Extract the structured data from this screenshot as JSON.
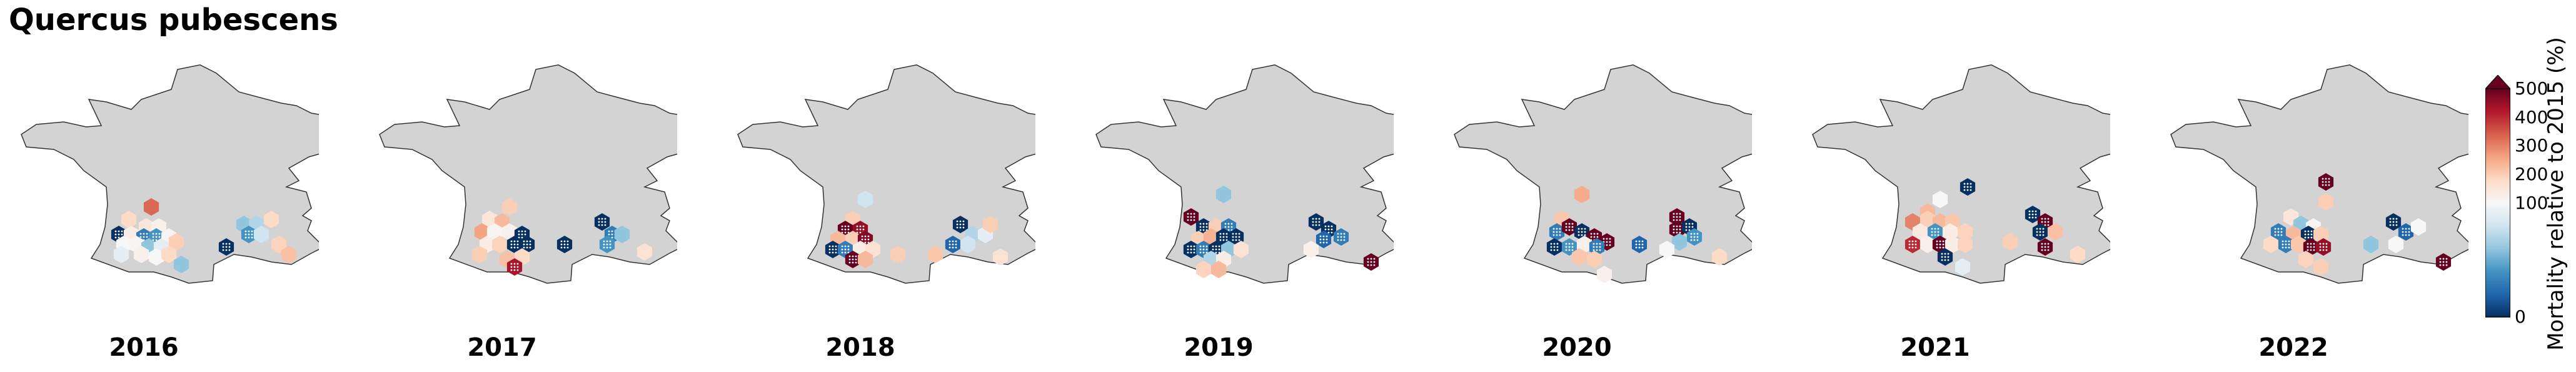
{
  "title": "Quercus pubescens",
  "colorbar": {
    "label": "Mortality relative to 2015 (%)",
    "ticks": [
      "500",
      "400",
      "300",
      "200",
      "100",
      "0"
    ],
    "colors": [
      "#053061",
      "#2166ac",
      "#4393c3",
      "#92c5de",
      "#d1e5f0",
      "#f7f7f7",
      "#fddbc7",
      "#f4a582",
      "#d6604d",
      "#b2182b",
      "#67001f"
    ]
  },
  "colors": {
    "land": "#d3d3d3",
    "border": "#333333"
  },
  "chart_data": {
    "type": "map",
    "region": "France",
    "value_range": [
      0,
      500
    ],
    "panels": [
      {
        "year": "2016",
        "cells": [
          {
            "lon": 0.6,
            "lat": 45.4,
            "value": 330
          },
          {
            "lon": -0.3,
            "lat": 44.9,
            "value": 180
          },
          {
            "lon": 0.4,
            "lat": 44.6,
            "value": 150
          },
          {
            "lon": 0.9,
            "lat": 44.6,
            "value": 120
          },
          {
            "lon": -0.7,
            "lat": 44.3,
            "value": 0
          },
          {
            "lon": -0.2,
            "lat": 44.3,
            "value": 130
          },
          {
            "lon": 0.3,
            "lat": 44.2,
            "value": 30
          },
          {
            "lon": 0.8,
            "lat": 44.2,
            "value": 40
          },
          {
            "lon": 1.3,
            "lat": 44.2,
            "value": 110
          },
          {
            "lon": -0.5,
            "lat": 43.9,
            "value": 100
          },
          {
            "lon": 0.0,
            "lat": 43.9,
            "value": 105
          },
          {
            "lon": 0.5,
            "lat": 43.8,
            "value": 60
          },
          {
            "lon": 1.0,
            "lat": 43.8,
            "value": 90
          },
          {
            "lon": 1.6,
            "lat": 44.0,
            "value": 200
          },
          {
            "lon": -0.6,
            "lat": 43.5,
            "value": 90
          },
          {
            "lon": 0.2,
            "lat": 43.5,
            "value": 120
          },
          {
            "lon": 0.8,
            "lat": 43.4,
            "value": 100
          },
          {
            "lon": 1.3,
            "lat": 43.5,
            "value": 180
          },
          {
            "lon": 1.8,
            "lat": 43.1,
            "value": 60
          },
          {
            "lon": 4.3,
            "lat": 44.7,
            "value": 60
          },
          {
            "lon": 4.8,
            "lat": 44.7,
            "value": 70
          },
          {
            "lon": 4.5,
            "lat": 44.3,
            "value": 40
          },
          {
            "lon": 5.0,
            "lat": 44.3,
            "value": 80
          },
          {
            "lon": 5.4,
            "lat": 44.9,
            "value": 180
          },
          {
            "lon": 3.6,
            "lat": 43.8,
            "value": 0
          },
          {
            "lon": 5.7,
            "lat": 43.9,
            "value": 190
          },
          {
            "lon": 6.1,
            "lat": 43.5,
            "value": 220
          }
        ]
      },
      {
        "year": "2017",
        "cells": [
          {
            "lon": 0.6,
            "lat": 45.4,
            "value": 200
          },
          {
            "lon": -0.2,
            "lat": 44.9,
            "value": 150
          },
          {
            "lon": 0.3,
            "lat": 44.8,
            "value": 230
          },
          {
            "lon": -0.5,
            "lat": 44.4,
            "value": 260
          },
          {
            "lon": 0.0,
            "lat": 44.4,
            "value": 110
          },
          {
            "lon": 0.6,
            "lat": 44.4,
            "value": 120
          },
          {
            "lon": 1.1,
            "lat": 44.3,
            "value": 0
          },
          {
            "lon": -0.3,
            "lat": 43.9,
            "value": 130
          },
          {
            "lon": 0.2,
            "lat": 43.9,
            "value": 190
          },
          {
            "lon": 0.8,
            "lat": 43.9,
            "value": 0
          },
          {
            "lon": 1.3,
            "lat": 43.9,
            "value": 0
          },
          {
            "lon": -0.6,
            "lat": 43.5,
            "value": 200
          },
          {
            "lon": 0.5,
            "lat": 43.3,
            "value": 220
          },
          {
            "lon": 1.1,
            "lat": 43.4,
            "value": 180
          },
          {
            "lon": 0.8,
            "lat": 43.0,
            "value": 430
          },
          {
            "lon": 2.8,
            "lat": 43.9,
            "value": 0
          },
          {
            "lon": 4.3,
            "lat": 44.8,
            "value": 0
          },
          {
            "lon": 4.7,
            "lat": 44.3,
            "value": 30
          },
          {
            "lon": 5.1,
            "lat": 44.3,
            "value": 60
          },
          {
            "lon": 4.5,
            "lat": 43.9,
            "value": 40
          },
          {
            "lon": 6.0,
            "lat": 43.6,
            "value": 160
          }
        ]
      },
      {
        "year": "2018",
        "cells": [
          {
            "lon": 0.5,
            "lat": 45.7,
            "value": 80
          },
          {
            "lon": 0.0,
            "lat": 44.9,
            "value": 200
          },
          {
            "lon": -0.3,
            "lat": 44.5,
            "value": 500
          },
          {
            "lon": 0.3,
            "lat": 44.5,
            "value": 450
          },
          {
            "lon": -0.6,
            "lat": 44.1,
            "value": 230
          },
          {
            "lon": 0.0,
            "lat": 44.1,
            "value": 200
          },
          {
            "lon": 0.5,
            "lat": 44.1,
            "value": 470
          },
          {
            "lon": -0.8,
            "lat": 43.7,
            "value": 0
          },
          {
            "lon": -0.3,
            "lat": 43.7,
            "value": 30
          },
          {
            "lon": 0.3,
            "lat": 43.7,
            "value": 130
          },
          {
            "lon": 0.8,
            "lat": 43.7,
            "value": 160
          },
          {
            "lon": 0.0,
            "lat": 43.3,
            "value": 500
          },
          {
            "lon": 0.5,
            "lat": 43.3,
            "value": 230
          },
          {
            "lon": 1.8,
            "lat": 43.5,
            "value": 200
          },
          {
            "lon": 3.3,
            "lat": 43.5,
            "value": 210
          },
          {
            "lon": 4.3,
            "lat": 44.7,
            "value": 0
          },
          {
            "lon": 4.8,
            "lat": 44.3,
            "value": 70
          },
          {
            "lon": 5.3,
            "lat": 44.3,
            "value": 90
          },
          {
            "lon": 4.0,
            "lat": 43.9,
            "value": 20
          },
          {
            "lon": 4.6,
            "lat": 43.9,
            "value": 80
          },
          {
            "lon": 5.5,
            "lat": 44.7,
            "value": 200
          },
          {
            "lon": 5.9,
            "lat": 43.4,
            "value": 160
          }
        ]
      },
      {
        "year": "2019",
        "cells": [
          {
            "lon": 0.5,
            "lat": 45.9,
            "value": 60
          },
          {
            "lon": -0.8,
            "lat": 45.0,
            "value": 500
          },
          {
            "lon": -0.3,
            "lat": 44.6,
            "value": 0
          },
          {
            "lon": 0.2,
            "lat": 44.6,
            "value": 200
          },
          {
            "lon": 0.7,
            "lat": 44.6,
            "value": 30
          },
          {
            "lon": -0.5,
            "lat": 44.1,
            "value": 200
          },
          {
            "lon": 0.0,
            "lat": 44.2,
            "value": 240
          },
          {
            "lon": 0.5,
            "lat": 44.2,
            "value": 0
          },
          {
            "lon": 1.0,
            "lat": 44.2,
            "value": 0
          },
          {
            "lon": -0.8,
            "lat": 43.7,
            "value": 0
          },
          {
            "lon": -0.3,
            "lat": 43.7,
            "value": 30
          },
          {
            "lon": 0.2,
            "lat": 43.7,
            "value": 0
          },
          {
            "lon": 0.7,
            "lat": 43.7,
            "value": 60
          },
          {
            "lon": 1.2,
            "lat": 43.7,
            "value": 160
          },
          {
            "lon": 0.0,
            "lat": 43.3,
            "value": 70
          },
          {
            "lon": 0.5,
            "lat": 43.3,
            "value": 130
          },
          {
            "lon": -0.3,
            "lat": 42.9,
            "value": 190
          },
          {
            "lon": 0.3,
            "lat": 42.9,
            "value": 230
          },
          {
            "lon": 4.2,
            "lat": 44.8,
            "value": 0
          },
          {
            "lon": 4.7,
            "lat": 44.5,
            "value": 0
          },
          {
            "lon": 5.2,
            "lat": 44.2,
            "value": 30
          },
          {
            "lon": 4.5,
            "lat": 44.1,
            "value": 20
          },
          {
            "lon": 4.0,
            "lat": 43.7,
            "value": 120
          },
          {
            "lon": 6.4,
            "lat": 43.2,
            "value": 500
          }
        ]
      },
      {
        "year": "2020",
        "cells": [
          {
            "lon": 0.5,
            "lat": 45.9,
            "value": 250
          },
          {
            "lon": -0.3,
            "lat": 44.9,
            "value": 210
          },
          {
            "lon": -0.5,
            "lat": 44.4,
            "value": 30
          },
          {
            "lon": 0.0,
            "lat": 44.6,
            "value": 500
          },
          {
            "lon": 0.5,
            "lat": 44.4,
            "value": 0
          },
          {
            "lon": 1.0,
            "lat": 44.2,
            "value": 500
          },
          {
            "lon": 1.5,
            "lat": 44.0,
            "value": 500
          },
          {
            "lon": -0.6,
            "lat": 43.8,
            "value": 0
          },
          {
            "lon": 0.0,
            "lat": 43.8,
            "value": 40
          },
          {
            "lon": 0.6,
            "lat": 43.9,
            "value": 120
          },
          {
            "lon": 1.1,
            "lat": 43.8,
            "value": 30
          },
          {
            "lon": 0.4,
            "lat": 43.4,
            "value": 210
          },
          {
            "lon": 1.0,
            "lat": 43.3,
            "value": 200
          },
          {
            "lon": 2.8,
            "lat": 43.9,
            "value": 20
          },
          {
            "lon": 4.3,
            "lat": 45.0,
            "value": 500
          },
          {
            "lon": 4.3,
            "lat": 44.5,
            "value": 500
          },
          {
            "lon": 4.8,
            "lat": 44.6,
            "value": 0
          },
          {
            "lon": 5.0,
            "lat": 44.2,
            "value": 40
          },
          {
            "lon": 4.4,
            "lat": 44.0,
            "value": 60
          },
          {
            "lon": 3.9,
            "lat": 43.7,
            "value": 100
          },
          {
            "lon": 6.0,
            "lat": 43.4,
            "value": 180
          },
          {
            "lon": 1.4,
            "lat": 42.7,
            "value": 120
          }
        ]
      },
      {
        "year": "2021",
        "cells": [
          {
            "lon": 1.6,
            "lat": 46.2,
            "value": 0
          },
          {
            "lon": 0.5,
            "lat": 45.7,
            "value": 100
          },
          {
            "lon": 0.0,
            "lat": 45.2,
            "value": 230
          },
          {
            "lon": -0.6,
            "lat": 44.8,
            "value": 300
          },
          {
            "lon": 0.0,
            "lat": 44.9,
            "value": 200
          },
          {
            "lon": 0.5,
            "lat": 44.8,
            "value": 230
          },
          {
            "lon": 1.0,
            "lat": 44.8,
            "value": 210
          },
          {
            "lon": -0.3,
            "lat": 44.4,
            "value": 140
          },
          {
            "lon": 0.3,
            "lat": 44.4,
            "value": 40
          },
          {
            "lon": 0.9,
            "lat": 44.4,
            "value": 130
          },
          {
            "lon": 1.5,
            "lat": 44.4,
            "value": 190
          },
          {
            "lon": -0.6,
            "lat": 43.9,
            "value": 400
          },
          {
            "lon": 0.0,
            "lat": 43.9,
            "value": 120
          },
          {
            "lon": 0.5,
            "lat": 43.9,
            "value": 500
          },
          {
            "lon": 1.0,
            "lat": 43.9,
            "value": 130
          },
          {
            "lon": 1.5,
            "lat": 43.9,
            "value": 190
          },
          {
            "lon": 0.7,
            "lat": 43.4,
            "value": 0
          },
          {
            "lon": 1.4,
            "lat": 43.0,
            "value": 90
          },
          {
            "lon": 3.3,
            "lat": 44.0,
            "value": 200
          },
          {
            "lon": 4.2,
            "lat": 45.1,
            "value": 0
          },
          {
            "lon": 4.7,
            "lat": 44.8,
            "value": 500
          },
          {
            "lon": 4.5,
            "lat": 44.4,
            "value": 0
          },
          {
            "lon": 5.1,
            "lat": 44.4,
            "value": 220
          },
          {
            "lon": 4.7,
            "lat": 43.8,
            "value": 500
          },
          {
            "lon": 6.0,
            "lat": 43.5,
            "value": 180
          }
        ]
      },
      {
        "year": "2022",
        "cells": [
          {
            "lon": 1.6,
            "lat": 46.4,
            "value": 500
          },
          {
            "lon": 1.6,
            "lat": 45.6,
            "value": 200
          },
          {
            "lon": 0.2,
            "lat": 45.0,
            "value": 150
          },
          {
            "lon": 0.6,
            "lat": 44.7,
            "value": 60
          },
          {
            "lon": 1.1,
            "lat": 44.6,
            "value": 110
          },
          {
            "lon": -0.3,
            "lat": 44.4,
            "value": 30
          },
          {
            "lon": 0.3,
            "lat": 44.3,
            "value": 230
          },
          {
            "lon": 0.9,
            "lat": 44.3,
            "value": 0
          },
          {
            "lon": 1.4,
            "lat": 44.3,
            "value": 200
          },
          {
            "lon": -0.6,
            "lat": 43.9,
            "value": 180
          },
          {
            "lon": 0.0,
            "lat": 43.9,
            "value": 30
          },
          {
            "lon": 0.5,
            "lat": 43.9,
            "value": 210
          },
          {
            "lon": 1.0,
            "lat": 43.8,
            "value": 500
          },
          {
            "lon": 1.5,
            "lat": 43.8,
            "value": 450
          },
          {
            "lon": 0.8,
            "lat": 43.3,
            "value": 190
          },
          {
            "lon": 1.4,
            "lat": 43.0,
            "value": 200
          },
          {
            "lon": 3.4,
            "lat": 43.9,
            "value": 60
          },
          {
            "lon": 4.3,
            "lat": 44.8,
            "value": 0
          },
          {
            "lon": 4.8,
            "lat": 44.4,
            "value": 20
          },
          {
            "lon": 5.3,
            "lat": 44.6,
            "value": 100
          },
          {
            "lon": 4.4,
            "lat": 43.9,
            "value": 100
          },
          {
            "lon": 6.3,
            "lat": 43.2,
            "value": 500
          }
        ]
      }
    ]
  }
}
